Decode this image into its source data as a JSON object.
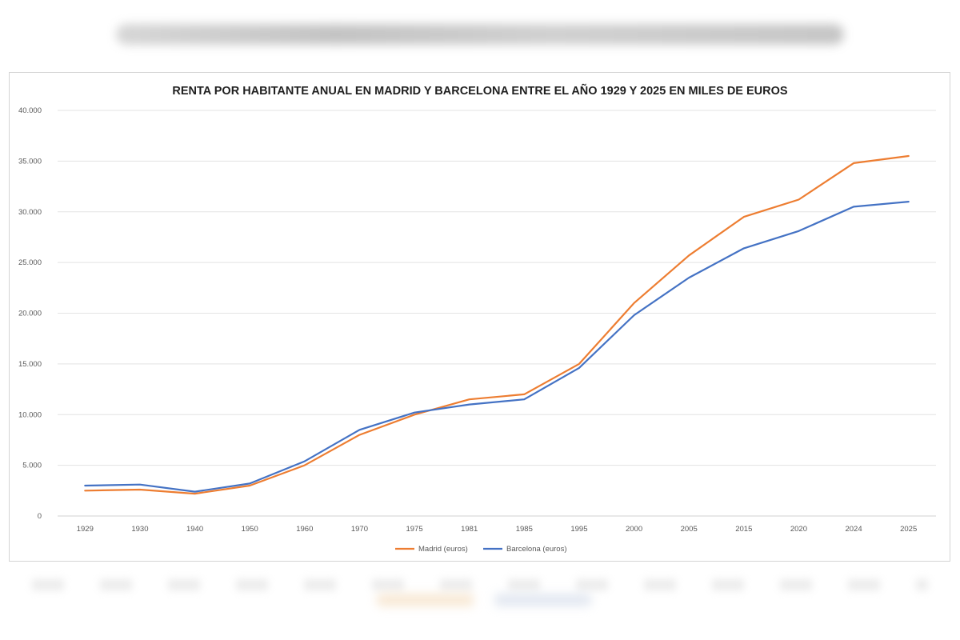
{
  "chart_data": {
    "type": "line",
    "title": "RENTA POR HABITANTE ANUAL EN MADRID Y BARCELONA ENTRE EL AÑO 1929 Y 2025 EN MILES DE EUROS",
    "categories": [
      "1929",
      "1930",
      "1940",
      "1950",
      "1960",
      "1970",
      "1975",
      "1981",
      "1985",
      "1995",
      "2000",
      "2005",
      "2015",
      "2020",
      "2024",
      "2025"
    ],
    "series": [
      {
        "name": "Madrid (euros)",
        "color": "#ED7D31",
        "values": [
          2500,
          2600,
          2200,
          3000,
          5000,
          8000,
          10000,
          11500,
          12000,
          15000,
          21000,
          25700,
          29500,
          31200,
          34800,
          35500
        ]
      },
      {
        "name": "Barcelona (euros)",
        "color": "#4472C4",
        "values": [
          3000,
          3100,
          2400,
          3200,
          5400,
          8500,
          10200,
          11000,
          11500,
          14600,
          19800,
          23500,
          26400,
          28100,
          30500,
          31000
        ]
      }
    ],
    "yticks": [
      "0",
      "5.000",
      "10.000",
      "15.000",
      "20.000",
      "25.000",
      "30.000",
      "35.000",
      "40.000"
    ],
    "ylim": [
      0,
      40000
    ],
    "ytick_step": 5000,
    "grid": true,
    "legend": "bottom"
  }
}
